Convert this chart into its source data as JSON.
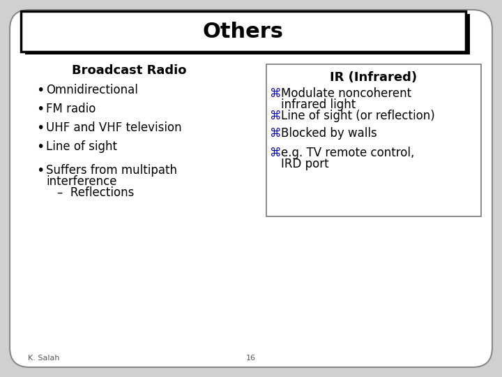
{
  "title_text": "Others",
  "bg_color": "#d0d0d0",
  "slide_bg": "#ffffff",
  "title_box_color": "#ffffff",
  "title_box_border": "#000000",
  "title_fontsize": 22,
  "left_heading": "Broadcast Radio",
  "left_items_line1": [
    "Omnidirectional",
    "FM radio",
    "UHF and VHF television",
    "Line of sight",
    "Suffers from multipath"
  ],
  "left_items_line2": [
    "",
    "",
    "",
    "",
    "interference"
  ],
  "left_items_line3": [
    "",
    "",
    "",
    "",
    "–  Reflections"
  ],
  "right_heading": "IR (Infrared)",
  "right_items_l1": [
    "Modulate noncoherent",
    "Line of sight (or reflection)",
    "Blocked by walls",
    "e.g. TV remote control,"
  ],
  "right_items_l2": [
    "infrared light",
    "",
    "",
    "IRD port"
  ],
  "right_bullet_color": "#0000bb",
  "right_bullet_char": "⌘",
  "text_color": "#000000",
  "footer_left": "K. Salah",
  "footer_center": "16",
  "footer_fontsize": 8,
  "content_fontsize": 12,
  "heading_fontsize": 13
}
